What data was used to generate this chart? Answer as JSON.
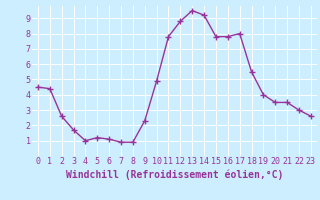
{
  "x": [
    0,
    1,
    2,
    3,
    4,
    5,
    6,
    7,
    8,
    9,
    10,
    11,
    12,
    13,
    14,
    15,
    16,
    17,
    18,
    19,
    20,
    21,
    22,
    23
  ],
  "y": [
    4.5,
    4.4,
    2.6,
    1.7,
    1.0,
    1.2,
    1.1,
    0.9,
    0.9,
    2.3,
    4.9,
    7.8,
    8.8,
    9.5,
    9.2,
    7.8,
    7.8,
    8.0,
    5.5,
    4.0,
    3.5,
    3.5,
    3.0,
    2.6
  ],
  "line_color": "#993399",
  "marker": "+",
  "marker_size": 4,
  "marker_lw": 1.0,
  "bg_color": "#cceeff",
  "grid_color": "#ffffff",
  "xlabel": "Windchill (Refroidissement éolien,°C)",
  "xlabel_color": "#993399",
  "tick_color": "#993399",
  "xlim": [
    -0.5,
    23.5
  ],
  "ylim": [
    0,
    9.8
  ],
  "xticks": [
    0,
    1,
    2,
    3,
    4,
    5,
    6,
    7,
    8,
    9,
    10,
    11,
    12,
    13,
    14,
    15,
    16,
    17,
    18,
    19,
    20,
    21,
    22,
    23
  ],
  "yticks": [
    1,
    2,
    3,
    4,
    5,
    6,
    7,
    8,
    9
  ],
  "tick_fontsize": 6,
  "xlabel_fontsize": 7,
  "line_width": 1.0
}
